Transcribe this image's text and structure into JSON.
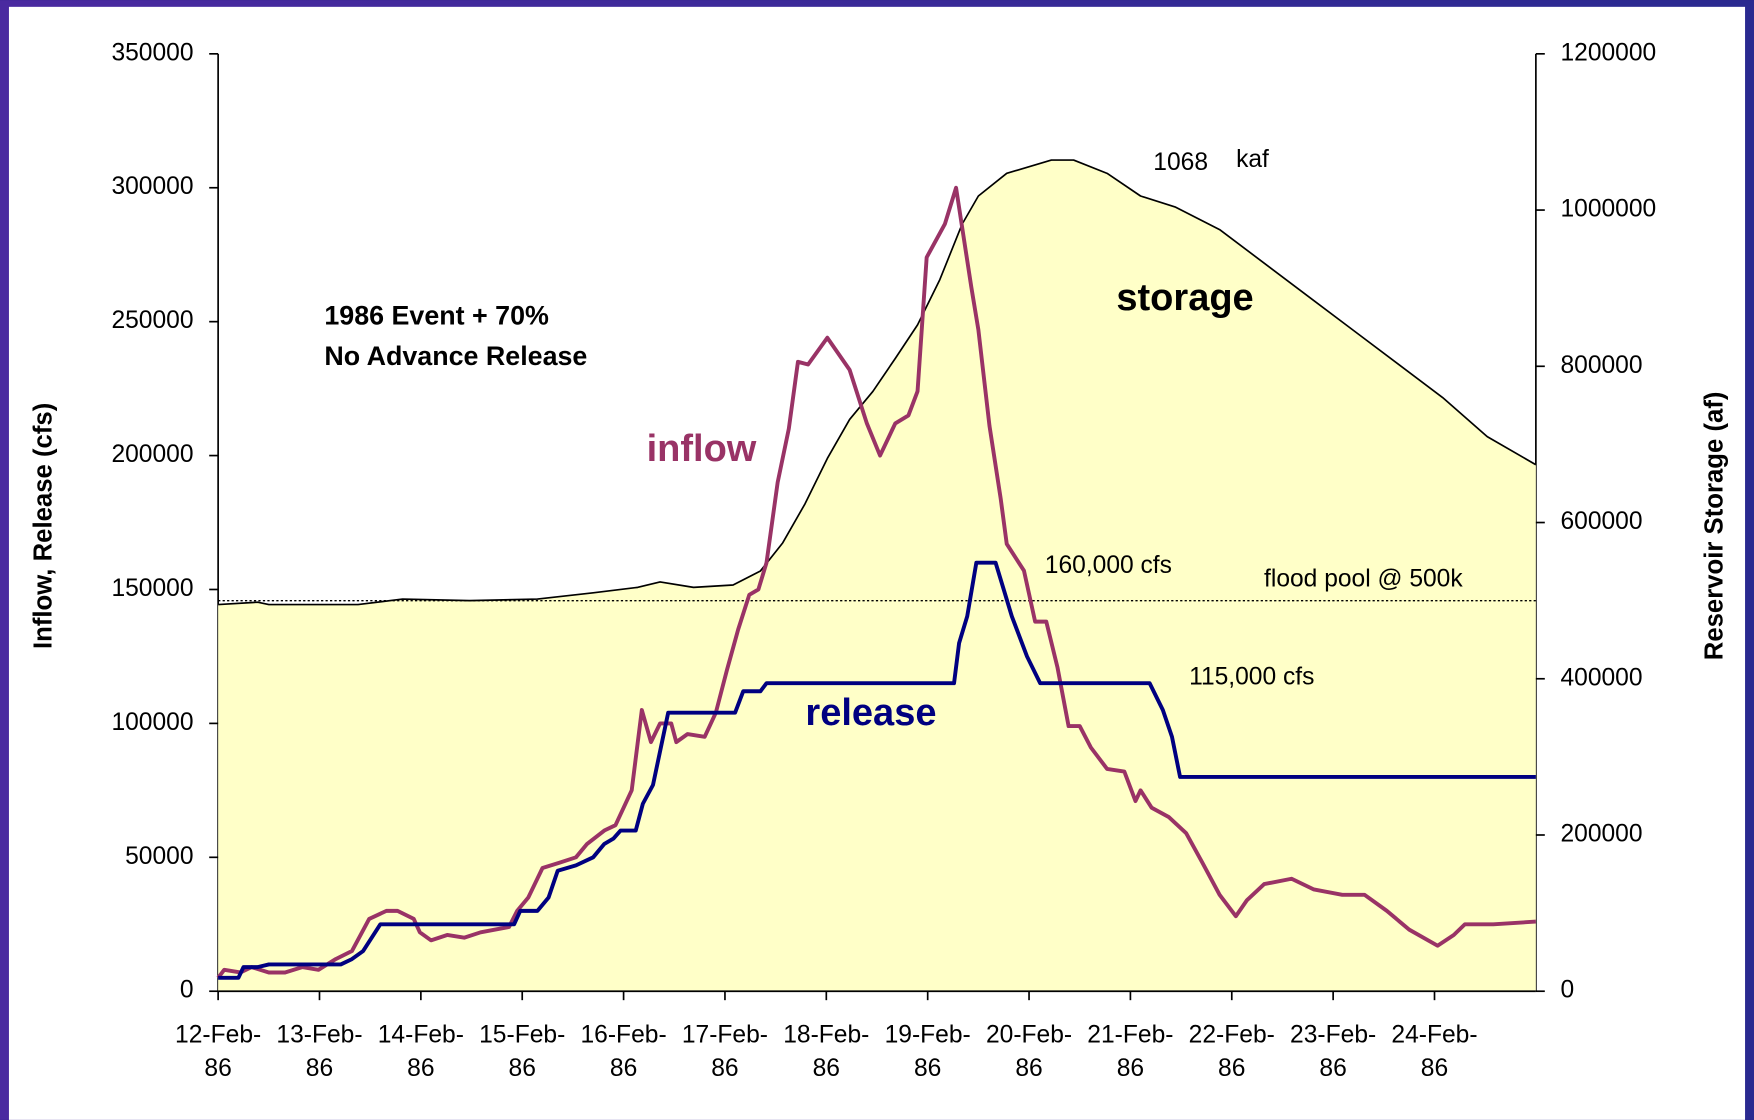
{
  "chart_data": {
    "type": "line",
    "x_label": "Inflow, Release (cfs)",
    "y_label": "Inflow, Release (cfs)",
    "y2_label": "Reservoir Storage (af)",
    "xlim": [
      0,
      13
    ],
    "xticks": [
      {
        "value": 0,
        "label": "12-Feb-86"
      },
      {
        "value": 1,
        "label": "13-Feb-86"
      },
      {
        "value": 2,
        "label": "14-Feb-86"
      },
      {
        "value": 3,
        "label": "15-Feb-86"
      },
      {
        "value": 4,
        "label": "16-Feb-86"
      },
      {
        "value": 5,
        "label": "17-Feb-86"
      },
      {
        "value": 6,
        "label": "18-Feb-86"
      },
      {
        "value": 7,
        "label": "19-Feb-86"
      },
      {
        "value": 8,
        "label": "20-Feb-86"
      },
      {
        "value": 9,
        "label": "21-Feb-86"
      },
      {
        "value": 10,
        "label": "22-Feb-86"
      },
      {
        "value": 11,
        "label": "23-Feb-86"
      },
      {
        "value": 12,
        "label": "24-Feb-86"
      }
    ],
    "ylim": [
      0,
      350000
    ],
    "yticks": [
      0,
      50000,
      100000,
      150000,
      200000,
      250000,
      300000,
      350000
    ],
    "y2lim": [
      0,
      1200000
    ],
    "y2ticks": [
      0,
      200000,
      400000,
      600000,
      800000,
      1000000,
      1200000
    ],
    "flood_pool": 500000,
    "annotations": [
      "1986 Event + 70%",
      "No Advance Release",
      "1068",
      "kaf",
      "160,000 cfs",
      "115,000 cfs",
      "flood pool @ 500k"
    ],
    "series": [
      {
        "name": "storage",
        "color": "#000000",
        "fill": "#ffffc8",
        "axis": "y2",
        "x": [
          0,
          0.39,
          0.5,
          1.38,
          1.82,
          2.48,
          3.15,
          3.7,
          4.14,
          4.36,
          4.69,
          5.08,
          5.35,
          5.57,
          5.79,
          6.01,
          6.23,
          6.46,
          6.68,
          6.9,
          7.12,
          7.34,
          7.5,
          7.78,
          8.22,
          8.44,
          8.77,
          9.1,
          9.44,
          9.88,
          10.32,
          10.76,
          11.2,
          11.64,
          12.08,
          12.52,
          13
        ],
        "values": [
          495000,
          498000,
          495000,
          495000,
          502000,
          500000,
          502000,
          510000,
          517000,
          524000,
          517000,
          520000,
          538000,
          574000,
          624000,
          682000,
          732000,
          768000,
          810000,
          853000,
          911000,
          982000,
          1018000,
          1047000,
          1064000,
          1064000,
          1047000,
          1018000,
          1004000,
          975000,
          932000,
          889000,
          846000,
          803000,
          760000,
          710000,
          674000
        ]
      },
      {
        "name": "inflow",
        "color": "#993366",
        "x": [
          0,
          0.06,
          0.22,
          0.33,
          0.5,
          0.66,
          0.83,
          0.99,
          1.16,
          1.32,
          1.49,
          1.66,
          1.77,
          1.93,
          1.99,
          2.1,
          2.26,
          2.43,
          2.59,
          2.87,
          2.95,
          3.06,
          3.2,
          3.37,
          3.53,
          3.64,
          3.81,
          3.92,
          4.08,
          4.18,
          4.27,
          4.36,
          4.47,
          4.52,
          4.63,
          4.8,
          4.91,
          5.02,
          5.13,
          5.24,
          5.33,
          5.41,
          5.52,
          5.63,
          5.72,
          5.82,
          6.01,
          6.23,
          6.4,
          6.53,
          6.68,
          6.81,
          6.9,
          6.99,
          7.17,
          7.28,
          7.43,
          7.5,
          7.61,
          7.72,
          7.78,
          7.95,
          8.06,
          8.17,
          8.28,
          8.39,
          8.5,
          8.61,
          8.77,
          8.94,
          9.05,
          9.1,
          9.21,
          9.38,
          9.55,
          9.71,
          9.88,
          10.04,
          10.15,
          10.32,
          10.59,
          10.81,
          11.09,
          11.31,
          11.53,
          11.75,
          12.03,
          12.19,
          12.3,
          12.58,
          13
        ],
        "values": [
          5000,
          8000,
          7000,
          9000,
          7000,
          7000,
          9000,
          8000,
          12000,
          15000,
          27000,
          30000,
          30000,
          27000,
          22000,
          19000,
          21000,
          20000,
          22000,
          24000,
          30000,
          35000,
          46000,
          48000,
          50000,
          55000,
          60000,
          62000,
          75000,
          105000,
          93000,
          100000,
          100000,
          93000,
          96000,
          95000,
          104000,
          120000,
          135000,
          148000,
          150000,
          160000,
          190000,
          210000,
          235000,
          234000,
          244000,
          232000,
          212000,
          200000,
          212000,
          215000,
          224000,
          274000,
          286500,
          300000,
          263000,
          247000,
          211000,
          184000,
          167000,
          157000,
          138000,
          138000,
          121000,
          99000,
          99000,
          91000,
          83000,
          82000,
          71000,
          75000,
          68500,
          65000,
          59000,
          48000,
          36000,
          28000,
          34000,
          40000,
          42000,
          38000,
          36000,
          36000,
          30000,
          23000,
          17000,
          21000,
          25000,
          25000,
          26000
        ]
      },
      {
        "name": "release",
        "color": "#000080",
        "x": [
          0,
          0.2,
          0.25,
          0.39,
          0.5,
          1.21,
          1.32,
          1.43,
          1.6,
          2.92,
          2.98,
          3.15,
          3.26,
          3.35,
          3.53,
          3.7,
          3.81,
          3.9,
          3.97,
          4.12,
          4.19,
          4.29,
          4.44,
          5.1,
          5.18,
          5.35,
          5.41,
          7.26,
          7.31,
          7.39,
          7.48,
          7.67,
          7.75,
          7.83,
          7.98,
          8.11,
          9.19,
          9.32,
          9.41,
          9.49,
          13
        ],
        "values": [
          5000,
          5000,
          9000,
          9000,
          10000,
          10000,
          12000,
          15000,
          25000,
          25000,
          30000,
          30000,
          35000,
          45000,
          47000,
          50000,
          55000,
          57000,
          60000,
          60000,
          70000,
          77000,
          104000,
          104000,
          112000,
          112000,
          115000,
          115000,
          130000,
          140000,
          160000,
          160000,
          150000,
          140000,
          125000,
          115000,
          115000,
          105000,
          95000,
          80000,
          80000
        ]
      }
    ]
  }
}
